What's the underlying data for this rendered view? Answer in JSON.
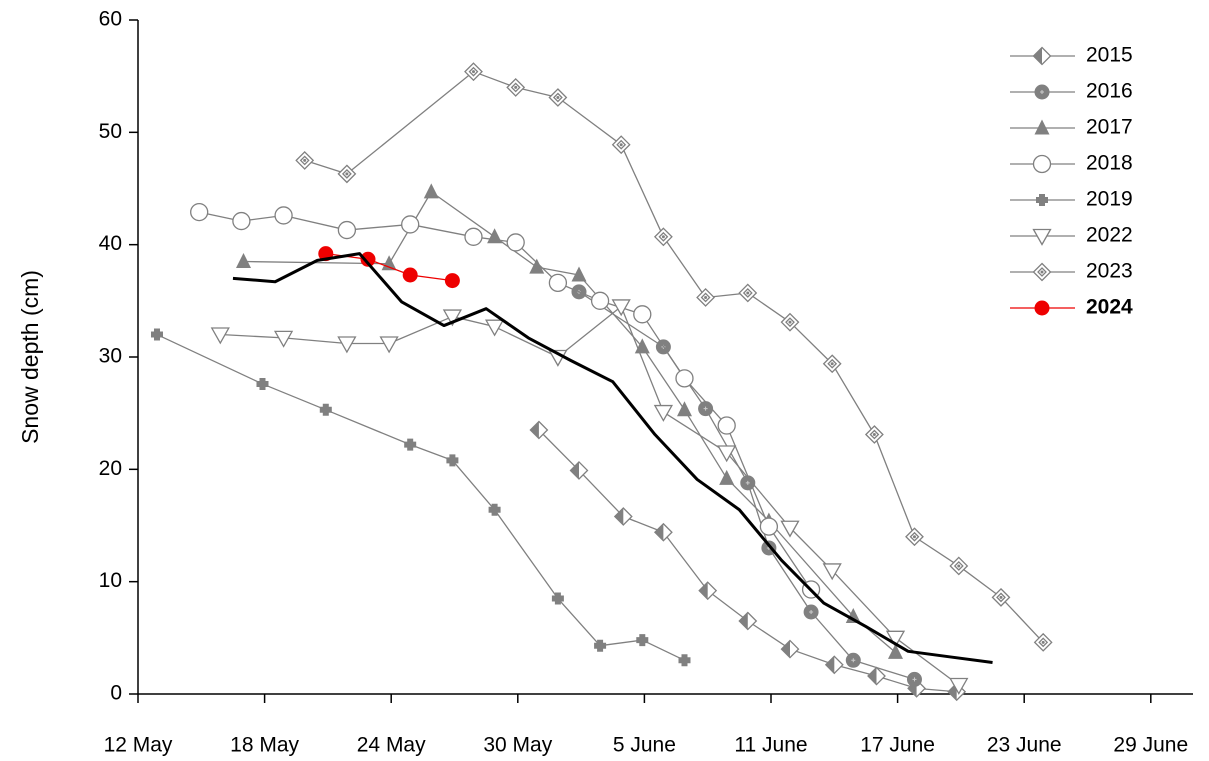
{
  "chart_data": {
    "type": "line",
    "y_label": "Snow depth (cm)",
    "xlim": [
      12,
      62
    ],
    "xticks": [
      {
        "value": 12,
        "label": "12 May"
      },
      {
        "value": 18,
        "label": "18 May"
      },
      {
        "value": 24,
        "label": "24 May"
      },
      {
        "value": 30,
        "label": "30 May"
      },
      {
        "value": 36,
        "label": "5 June"
      },
      {
        "value": 42,
        "label": "11 June"
      },
      {
        "value": 48,
        "label": "17 June"
      },
      {
        "value": 54,
        "label": "23 June"
      },
      {
        "value": 60,
        "label": "29 June"
      }
    ],
    "ylim": [
      0,
      60
    ],
    "yticks": [
      0,
      10,
      20,
      30,
      40,
      50,
      60
    ],
    "legend": "upper right",
    "series": [
      {
        "name": "2015",
        "color": "#808080",
        "marker": "half-diamond",
        "x": [
          31.0,
          32.9,
          35.0,
          36.9,
          39.0,
          40.9,
          42.9,
          45.0,
          47.0,
          48.9,
          50.8
        ],
        "values": [
          23.5,
          19.9,
          15.8,
          14.4,
          9.2,
          6.5,
          4.0,
          2.6,
          1.6,
          0.5,
          0.2
        ]
      },
      {
        "name": "2016",
        "color": "#808080",
        "marker": "filled-circle",
        "x": [
          32.9,
          36.9,
          38.9,
          40.9,
          41.9,
          43.9,
          45.9,
          48.8
        ],
        "values": [
          35.8,
          30.9,
          25.4,
          18.8,
          13.0,
          7.3,
          3.0,
          1.3
        ]
      },
      {
        "name": "2017",
        "color": "#808080",
        "marker": "triangle",
        "x": [
          17.0,
          23.9,
          25.9,
          28.9,
          30.9,
          32.9,
          35.9,
          37.9,
          39.9,
          41.9,
          45.9,
          47.9
        ],
        "values": [
          38.5,
          38.3,
          44.7,
          40.7,
          38.0,
          37.3,
          30.9,
          25.3,
          19.2,
          15.4,
          6.9,
          3.7
        ]
      },
      {
        "name": "2018",
        "color": "#808080",
        "marker": "open-circle",
        "x": [
          14.9,
          16.9,
          18.9,
          21.9,
          24.9,
          27.9,
          29.9,
          31.9,
          33.9,
          35.9,
          37.9,
          39.9,
          41.9,
          43.9
        ],
        "values": [
          42.9,
          42.1,
          42.6,
          41.3,
          41.8,
          40.7,
          40.2,
          36.6,
          35.0,
          33.8,
          28.1,
          23.9,
          14.9,
          9.3
        ]
      },
      {
        "name": "2019",
        "color": "#808080",
        "marker": "plus",
        "x": [
          12.9,
          17.9,
          20.9,
          24.9,
          26.9,
          28.9,
          31.9,
          33.9,
          35.9,
          37.9
        ],
        "values": [
          32.0,
          27.6,
          25.3,
          22.2,
          20.8,
          16.4,
          8.5,
          4.3,
          4.8,
          3.0
        ]
      },
      {
        "name": "2022",
        "color": "#808080",
        "marker": "down-triangle",
        "x": [
          15.9,
          18.9,
          21.9,
          23.9,
          26.9,
          28.9,
          31.9,
          34.9,
          36.9,
          39.9,
          42.9,
          44.9,
          47.9,
          50.9
        ],
        "values": [
          32.0,
          31.7,
          31.2,
          31.2,
          33.6,
          32.7,
          30.0,
          34.5,
          25.1,
          21.5,
          14.8,
          11.0,
          5.0,
          0.8
        ]
      },
      {
        "name": "2023",
        "color": "#808080",
        "marker": "dot-diamond",
        "x": [
          19.9,
          21.9,
          27.9,
          29.9,
          31.9,
          34.9,
          36.9,
          38.9,
          40.9,
          42.9,
          44.9,
          46.9,
          48.8,
          50.9,
          52.9,
          54.9
        ],
        "values": [
          47.5,
          46.3,
          55.4,
          54.0,
          53.1,
          48.9,
          40.7,
          35.3,
          35.7,
          33.1,
          29.4,
          23.1,
          14.0,
          11.4,
          8.6,
          4.6
        ]
      },
      {
        "name": "2024",
        "color": "#ee0000",
        "marker": "red-circle",
        "bold": true,
        "x": [
          20.9,
          22.9,
          24.9,
          26.9
        ],
        "values": [
          39.2,
          38.7,
          37.3,
          36.8
        ]
      },
      {
        "color": "#000000",
        "marker": "none",
        "x": [
          16.5,
          18.5,
          20.5,
          22.5,
          24.5,
          26.5,
          28.5,
          30.5,
          32.5,
          34.5,
          36.5,
          38.5,
          40.5,
          42.5,
          44.5,
          46.5,
          48.5,
          50.5,
          52.5
        ],
        "values": [
          37.0,
          36.7,
          38.6,
          39.2,
          34.9,
          32.8,
          34.3,
          31.7,
          29.7,
          27.8,
          23.1,
          19.1,
          16.4,
          11.9,
          8.1,
          6.0,
          3.8,
          3.3,
          2.8
        ]
      }
    ]
  }
}
